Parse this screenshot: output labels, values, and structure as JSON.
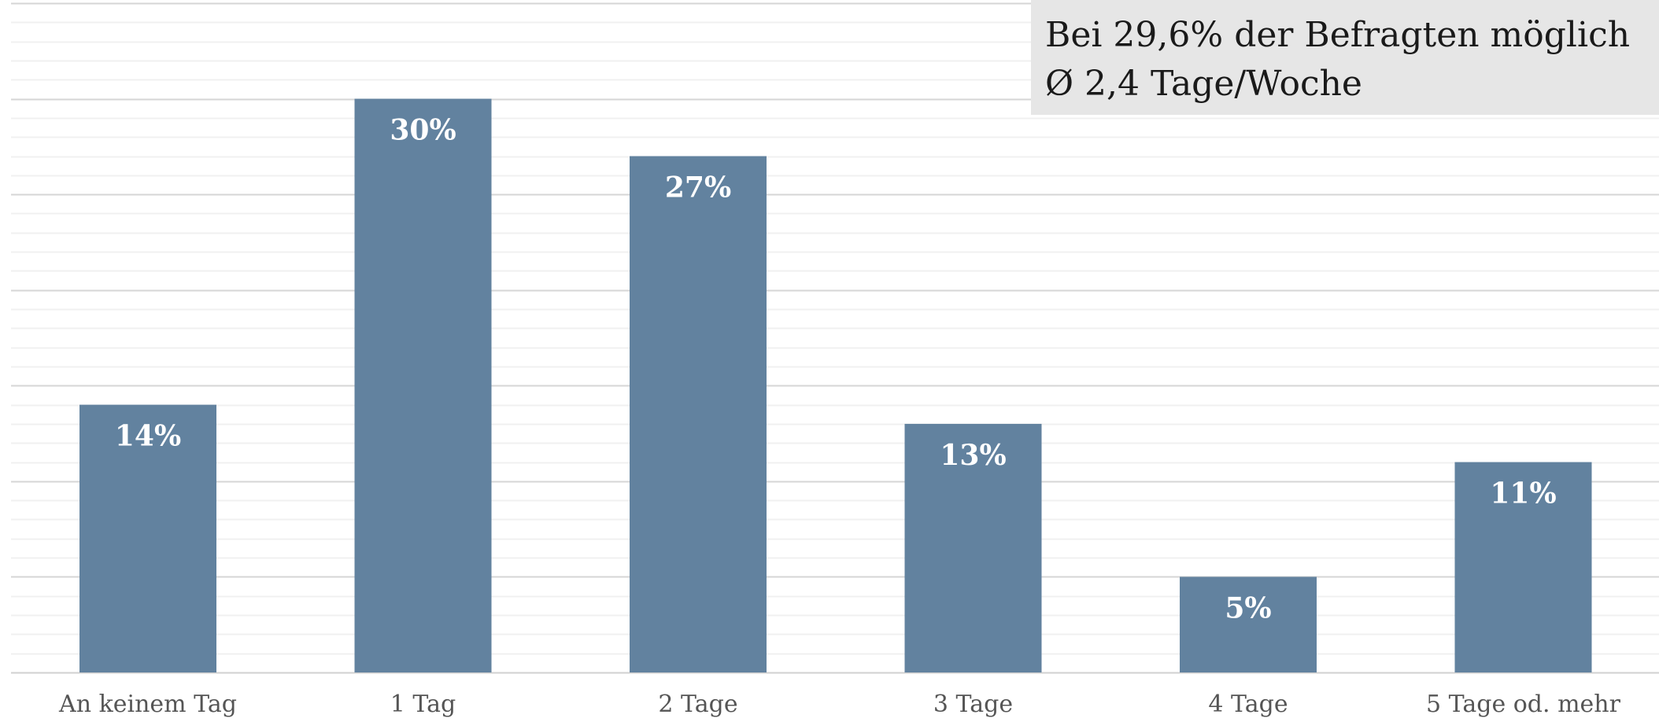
{
  "chart_data": {
    "type": "bar",
    "categories": [
      "An keinem Tag",
      "1 Tag",
      "2 Tage",
      "3 Tage",
      "4 Tage",
      "5 Tage od. mehr"
    ],
    "values": [
      14,
      30,
      27,
      13,
      5,
      11
    ],
    "data_labels": [
      "14%",
      "30%",
      "27%",
      "13%",
      "5%",
      "11%"
    ],
    "ylim": [
      0,
      35
    ],
    "major_grid_step": 5,
    "minor_grid_step": 1,
    "grid": true,
    "bar_color": "#62829f",
    "annotation": {
      "lines": [
        "Bei 29,6% der Befragten möglich",
        "Ø 2,4 Tage/Woche"
      ],
      "placement": "top-right"
    }
  }
}
